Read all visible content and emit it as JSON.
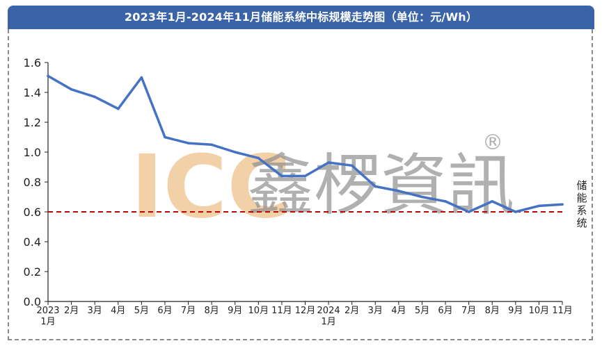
{
  "title": "2023年1月-2024年11月储能系统中标规模走势图（单位：元/Wh）",
  "watermark": {
    "brand": "ICC",
    "chinese": "鑫椤資訊",
    "registered": "®"
  },
  "annotation": {
    "label": "储能系统"
  },
  "colors": {
    "header": "#3a63a8",
    "line": "#4472c4",
    "reference_line": "#c00000",
    "axis": "#222222"
  },
  "chart_data": {
    "type": "line",
    "title": "2023年1月-2024年11月储能系统中标规模走势图（单位：元/Wh）",
    "xlabel": "",
    "ylabel": "",
    "ylim": [
      0.0,
      1.6
    ],
    "y_ticks": [
      "0.0",
      "0.2",
      "0.4",
      "0.6",
      "0.8",
      "1.0",
      "1.2",
      "1.4",
      "1.6"
    ],
    "categories": [
      [
        "2023",
        "1月"
      ],
      [
        "2月"
      ],
      [
        "3月"
      ],
      [
        "4月"
      ],
      [
        "5月"
      ],
      [
        "6月"
      ],
      [
        "7月"
      ],
      [
        "8月"
      ],
      [
        "9月"
      ],
      [
        "10月"
      ],
      [
        "11月"
      ],
      [
        "12月"
      ],
      [
        "2024",
        "1月"
      ],
      [
        "2月"
      ],
      [
        "3月"
      ],
      [
        "4月"
      ],
      [
        "5月"
      ],
      [
        "6月"
      ],
      [
        "7月"
      ],
      [
        "8月"
      ],
      [
        "9月"
      ],
      [
        "10月"
      ],
      [
        "11月"
      ]
    ],
    "x_dates": [
      "2023-01",
      "2023-02",
      "2023-03",
      "2023-04",
      "2023-05",
      "2023-06",
      "2023-07",
      "2023-08",
      "2023-09",
      "2023-10",
      "2023-11",
      "2023-12",
      "2024-01",
      "2024-02",
      "2024-03",
      "2024-04",
      "2024-05",
      "2024-06",
      "2024-07",
      "2024-08",
      "2024-09",
      "2024-10",
      "2024-11"
    ],
    "series": [
      {
        "name": "储能系统",
        "values": [
          1.51,
          1.42,
          1.37,
          1.29,
          1.5,
          1.1,
          1.06,
          1.05,
          1.0,
          0.96,
          0.84,
          0.84,
          0.93,
          0.91,
          0.77,
          0.74,
          0.7,
          0.67,
          0.6,
          0.67,
          0.6,
          0.64,
          0.65
        ]
      }
    ],
    "reference_line": {
      "y": 0.6,
      "style": "dashed"
    },
    "grid": false,
    "legend": "none"
  }
}
